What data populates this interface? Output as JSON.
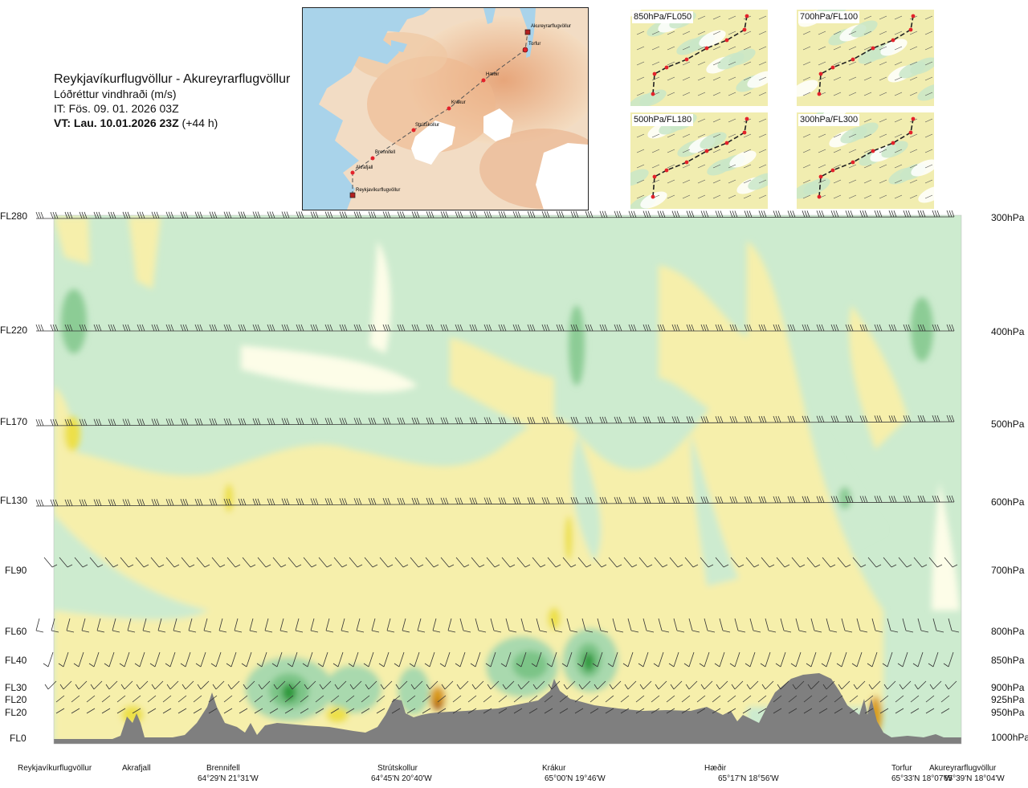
{
  "header": {
    "route": "Reykjavíkurflugvöllur - Akureyrarflugvöllur",
    "variable": "Lóðréttur vindhraði (m/s)",
    "issue_time": "IT: Fös. 09. 01. 2026 03Z",
    "valid_time_bold": "VT: Lau. 10.01.2026 23Z",
    "valid_time_offset": " (+44 h)"
  },
  "route_map": {
    "waypoints": [
      {
        "name": "Akureyrarflugvöllur",
        "marker": "square"
      },
      {
        "name": "Torfur",
        "marker": "circle"
      },
      {
        "name": "Hæðir",
        "marker": "circle"
      },
      {
        "name": "Krákur",
        "marker": "circle"
      },
      {
        "name": "Strútskollur",
        "marker": "circle"
      },
      {
        "name": "Brennifell",
        "marker": "circle"
      },
      {
        "name": "Akrafjall",
        "marker": "circle"
      },
      {
        "name": "Reykjavíkurflugvöllur",
        "marker": "square"
      }
    ],
    "colors": {
      "sea": "#a9d3ea",
      "land_low": "#f5e9d6",
      "land_high": "#e9a97b",
      "ice": "#ffffff",
      "route": "#555555",
      "waypoint": "#e3222b"
    }
  },
  "level_maps": [
    {
      "label": "850hPa/FL050"
    },
    {
      "label": "700hPa/FL100"
    },
    {
      "label": "500hPa/FL180"
    },
    {
      "label": "300hPa/FL300"
    }
  ],
  "cross_section": {
    "left_axis_labels": [
      "FL280",
      "FL220",
      "FL170",
      "FL130",
      "FL90",
      "FL60",
      "FL40",
      "FL30",
      "FL20",
      "FL20",
      "FL0"
    ],
    "right_axis_labels": [
      "300hPa",
      "400hPa",
      "500hPa",
      "600hPa",
      "700hPa",
      "800hPa",
      "850hPa",
      "900hPa",
      "925hPa",
      "950hPa",
      "1000hPa"
    ],
    "bottom_locations": [
      {
        "name": "Reykjavíkurflugvöllur",
        "coord": ""
      },
      {
        "name": "Akrafjall",
        "coord": ""
      },
      {
        "name": "Brennifell",
        "coord": "64°29'N 21°31'W"
      },
      {
        "name": "Strútskollur",
        "coord": "64°45'N 20°40'W"
      },
      {
        "name": "Krákur",
        "coord": "65°00'N 19°46'W"
      },
      {
        "name": "Hæðir",
        "coord": "65°17'N 18°56'W"
      },
      {
        "name": "Torfur",
        "coord": "65°33'N 18°07'W"
      },
      {
        "name": "Akureyrarflugvöllur",
        "coord": "65°39'N 18°04'W"
      }
    ],
    "colors": {
      "down_strong": "#2e9a3c",
      "down_mid": "#7cc487",
      "down_weak": "#a9d9ae",
      "down_faint": "#cdebcf",
      "neutral": "#fdfde8",
      "up_faint": "#f6efab",
      "up_mid": "#ede04a",
      "up_strong": "#d99b1e",
      "up_max": "#b06a13",
      "terrain": "#7f7f7f",
      "barb": "#333333"
    }
  },
  "chart_data": {
    "type": "heatmap",
    "title": "Reykjavíkurflugvöllur - Akureyrarflugvöllur",
    "subtitle": "Lóðréttur vindhraði (m/s)",
    "x_categories": [
      "Reykjavíkurflugvöllur",
      "Akrafjall",
      "Brennifell",
      "Strútskollur",
      "Krákur",
      "Hæðir",
      "Torfur",
      "Akureyrarflugvöllur"
    ],
    "y_levels_fl": [
      "FL280",
      "FL220",
      "FL170",
      "FL130",
      "FL90",
      "FL60",
      "FL40",
      "FL30",
      "FL20",
      "FL20",
      "FL0"
    ],
    "y_levels_hpa": [
      "300hPa",
      "400hPa",
      "500hPa",
      "600hPa",
      "700hPa",
      "800hPa",
      "850hPa",
      "900hPa",
      "925hPa",
      "950hPa",
      "1000hPa"
    ]
  }
}
